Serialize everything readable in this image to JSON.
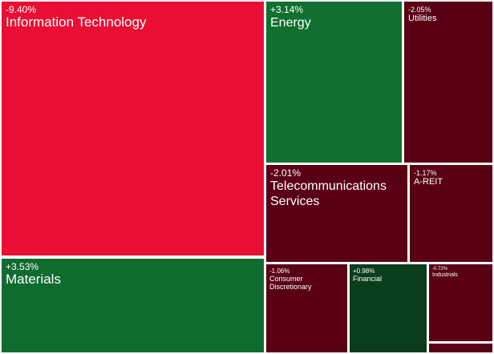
{
  "chart_data": {
    "type": "treemap",
    "items": [
      {
        "name": "Information Technology",
        "label": "Information Technology",
        "change": "-9.40%",
        "value": -9.4,
        "color": "#e90e33"
      },
      {
        "name": "Materials",
        "label": "Materials",
        "change": "+3.53%",
        "value": 3.53,
        "color": "#0f6b2e"
      },
      {
        "name": "Energy",
        "label": "Energy",
        "change": "+3.14%",
        "value": 3.14,
        "color": "#117030"
      },
      {
        "name": "Utilities",
        "label": "Utilities",
        "change": "-2.05%",
        "value": -2.05,
        "color": "#5a0015"
      },
      {
        "name": "Telecommunications Services",
        "label": "Telecommunications\nServices",
        "change": "-2.01%",
        "value": -2.01,
        "color": "#5a0015"
      },
      {
        "name": "A-REIT",
        "label": "A-REIT",
        "change": "-1.17%",
        "value": -1.17,
        "color": "#5a0015"
      },
      {
        "name": "Consumer Discretionary",
        "label": "Consumer\nDiscretionary",
        "change": "-1.06%",
        "value": -1.06,
        "color": "#5a0015"
      },
      {
        "name": "Financial",
        "label": "Financial",
        "change": "+0.98%",
        "value": 0.98,
        "color": "#0a3d1c"
      },
      {
        "name": "Industrials",
        "label": "Industrials",
        "change": "-0.72%",
        "value": -0.72,
        "color": "#5a0015"
      },
      {
        "name": "",
        "label": "",
        "change": "",
        "value": null,
        "color": "#5a0015"
      }
    ]
  }
}
